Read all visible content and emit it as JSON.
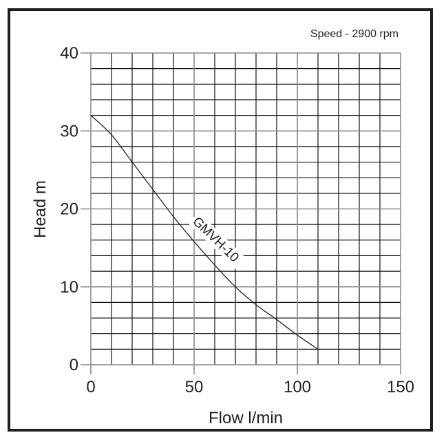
{
  "chart_data": {
    "type": "line",
    "title": "",
    "annotation": "Speed - 2900 rpm",
    "xlabel": "Flow l/min",
    "ylabel": "Head m",
    "xlim": [
      0,
      150
    ],
    "ylim": [
      0,
      40
    ],
    "x_ticks": [
      0,
      50,
      100,
      150
    ],
    "y_ticks": [
      0,
      10,
      20,
      30,
      40
    ],
    "x_minor_step": 10,
    "y_minor_step": 2,
    "grid": true,
    "legend": "none (inline series label)",
    "series": [
      {
        "name": "GMVH-10",
        "x": [
          0,
          10,
          20,
          30,
          40,
          50,
          60,
          70,
          80,
          90,
          100,
          110
        ],
        "y": [
          32,
          29.5,
          26,
          22.5,
          19,
          15.8,
          12.8,
          10,
          7.7,
          5.8,
          3.8,
          2
        ]
      }
    ]
  },
  "labels": {
    "speed": "Speed - 2900 rpm",
    "xlabel": "Flow l/min",
    "ylabel": "Head m",
    "series_label": "GMVH-10"
  },
  "colors": {
    "grid_minor": "#111111",
    "grid_major": "#8a8a8a",
    "curve": "#222222",
    "frame": "#1e1e1e"
  }
}
